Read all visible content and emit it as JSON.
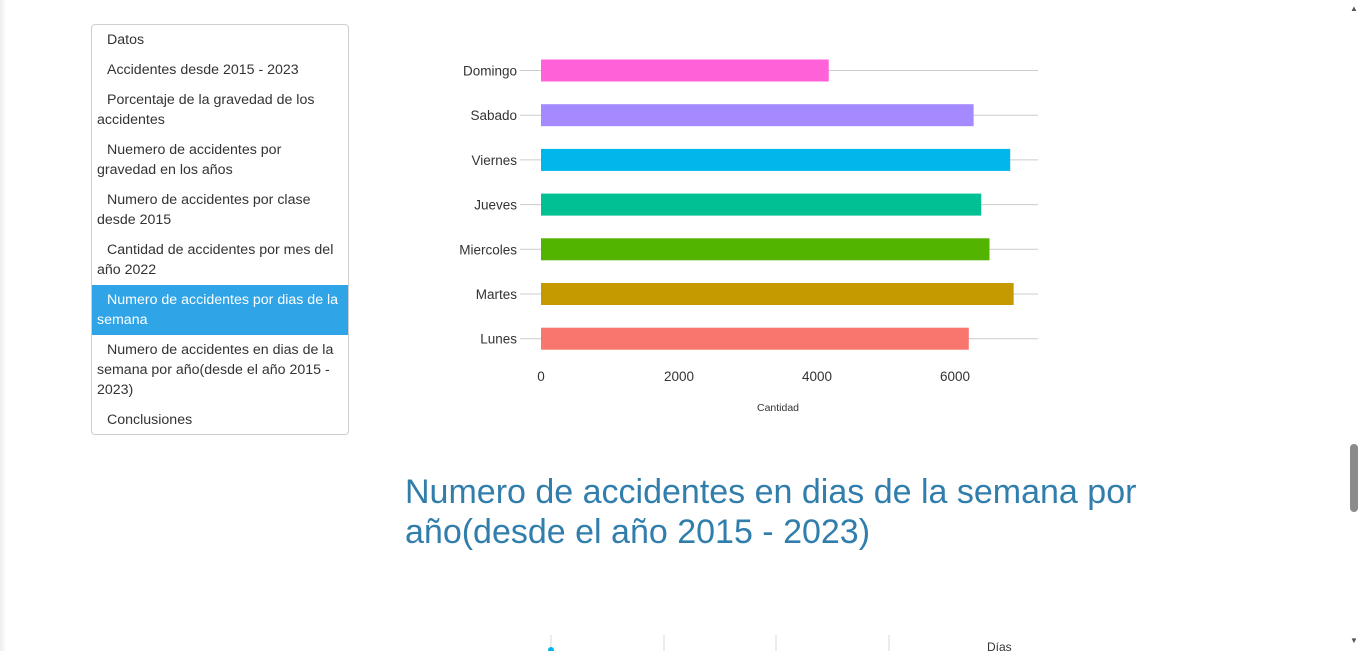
{
  "sidebar": {
    "items": [
      {
        "label": "Datos",
        "active": false
      },
      {
        "label": "Accidentes desde 2015 - 2023",
        "active": false
      },
      {
        "label": "Porcentaje de la gravedad de los accidentes",
        "active": false
      },
      {
        "label": "Nuemero de accidentes por gravedad en los años",
        "active": false
      },
      {
        "label": "Numero de accidentes por clase desde 2015",
        "active": false
      },
      {
        "label": "Cantidad de accidentes por mes del año 2022",
        "active": false
      },
      {
        "label": "Numero de accidentes por dias de la semana",
        "active": true
      },
      {
        "label": "Numero de accidentes en dias de la semana por año(desde el año 2015 - 2023)",
        "active": false
      },
      {
        "label": "Conclusiones",
        "active": false
      }
    ]
  },
  "chart_data": {
    "type": "bar",
    "orientation": "horizontal",
    "categories": [
      "Domingo",
      "Sabado",
      "Viernes",
      "Jueves",
      "Miercoles",
      "Martes",
      "Lunes"
    ],
    "values": [
      4170,
      6270,
      6800,
      6380,
      6500,
      6850,
      6200
    ],
    "colors": [
      "#ff61d8",
      "#a58aff",
      "#00b6eb",
      "#00c094",
      "#53b400",
      "#c49a00",
      "#f8766d"
    ],
    "xlabel": "Cantidad",
    "ylabel": "",
    "xticks": [
      0,
      2000,
      4000,
      6000
    ],
    "xlim": [
      0,
      7200
    ],
    "grid": true
  },
  "section": {
    "title": "Numero de accidentes en dias de la semana por año(desde el año 2015 - 2023)"
  },
  "next_chart": {
    "legend_title": "Días"
  },
  "scrollbar": {
    "position": 0.69
  }
}
